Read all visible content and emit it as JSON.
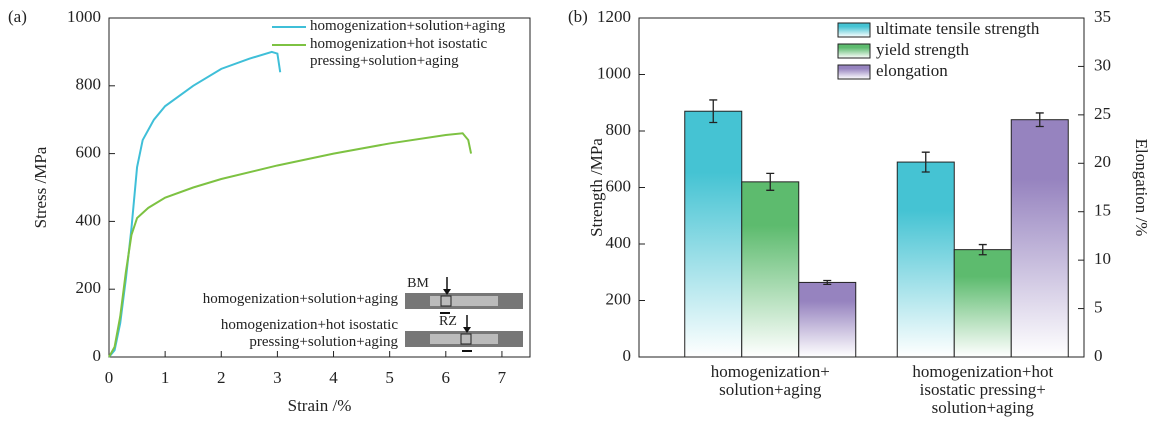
{
  "chart_data": [
    {
      "type": "line",
      "panel_label": "(a)",
      "x_label": "Strain /%",
      "y_label": "Stress /MPa",
      "xlim": [
        0,
        7.5
      ],
      "xticks": [
        0,
        1,
        2,
        3,
        4,
        5,
        6,
        7
      ],
      "ylim": [
        0,
        1000
      ],
      "yticks": [
        0,
        200,
        400,
        600,
        800,
        1000
      ],
      "series": [
        {
          "name": "homogenization+solution+aging",
          "color": "#3fbfd8",
          "x": [
            0,
            0.1,
            0.2,
            0.3,
            0.4,
            0.5,
            0.6,
            0.8,
            1.0,
            1.5,
            2.0,
            2.5,
            2.9,
            3.0,
            3.05
          ],
          "values": [
            0,
            20,
            100,
            230,
            380,
            560,
            640,
            700,
            740,
            800,
            850,
            880,
            900,
            895,
            840
          ]
        },
        {
          "name": "homogenization+hot isostatic pressing+solution+aging",
          "color": "#7dc242",
          "x": [
            0,
            0.1,
            0.2,
            0.3,
            0.4,
            0.5,
            0.7,
            1.0,
            1.5,
            2.0,
            3.0,
            4.0,
            5.0,
            6.0,
            6.3,
            6.4,
            6.45
          ],
          "values": [
            0,
            30,
            120,
            250,
            360,
            410,
            440,
            470,
            500,
            525,
            565,
            600,
            630,
            655,
            660,
            640,
            600
          ]
        }
      ],
      "annotations": {
        "markers": [
          "BM",
          "RZ"
        ],
        "labels": [
          "homogenization+solution+aging",
          "homogenization+hot isostatic pressing+solution+aging"
        ]
      }
    },
    {
      "type": "bar",
      "panel_label": "(b)",
      "y_label": "Strength /MPa",
      "y2_label": "Elongation /%",
      "categories": [
        "homogenization+ solution+aging",
        "homogenization+hot isostatic pressing+ solution+aging"
      ],
      "ylim": [
        0,
        1200
      ],
      "yticks": [
        0,
        200,
        400,
        600,
        800,
        1000,
        1200
      ],
      "y2lim": [
        0,
        35
      ],
      "y2ticks": [
        0,
        5,
        10,
        15,
        20,
        25,
        30,
        35
      ],
      "series": [
        {
          "name": "ultimate tensile strength",
          "color": "#45c3d3",
          "values": [
            870,
            690
          ],
          "errors": [
            40,
            35
          ]
        },
        {
          "name": "yield strength",
          "color": "#5dbb6e",
          "values": [
            620,
            380
          ],
          "errors": [
            30,
            18
          ]
        },
        {
          "name": "elongation",
          "color": "#9683bf",
          "axis": "y2",
          "values": [
            7.7,
            24.5
          ],
          "errors": [
            0.2,
            0.7
          ]
        }
      ]
    }
  ]
}
